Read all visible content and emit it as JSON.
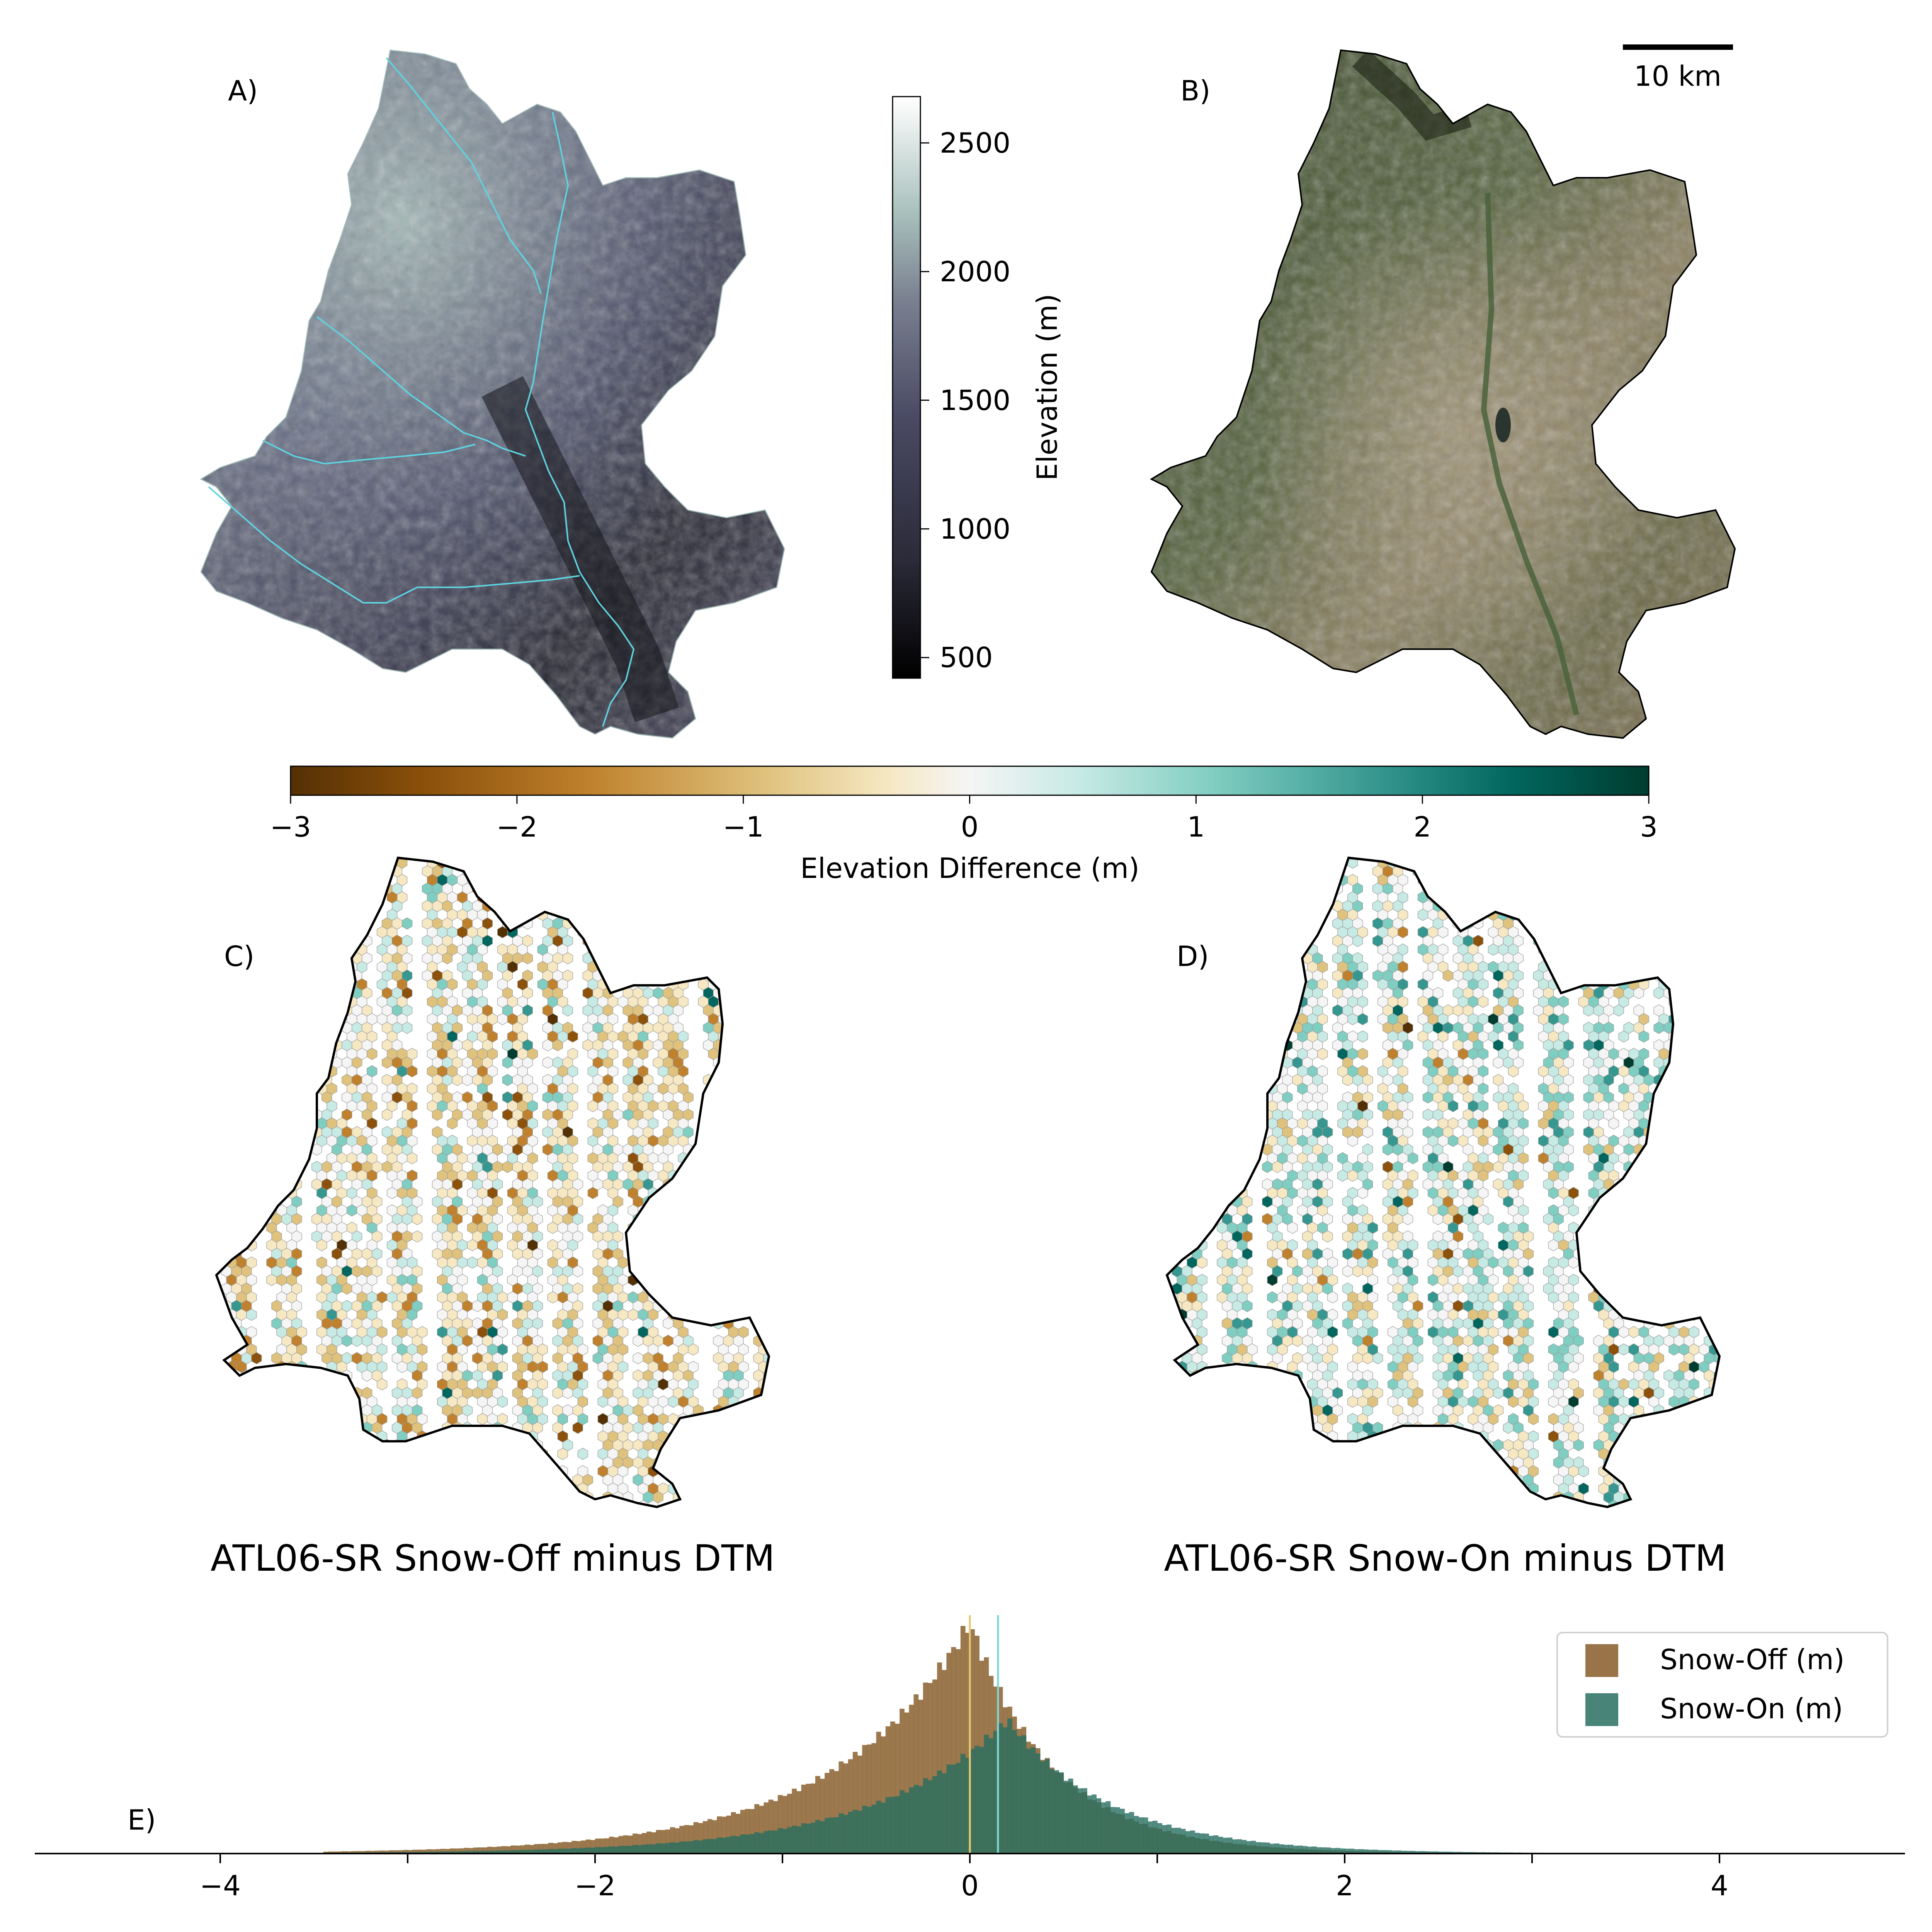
{
  "panels": {
    "a_label": "A)",
    "b_label": "B)",
    "c_label": "C)",
    "d_label": "D)",
    "e_label": "E)",
    "c_title": "ATL06-SR Snow-Off minus DTM",
    "d_title": "ATL06-SR Snow-On minus DTM"
  },
  "scalebar": {
    "label": "10 km"
  },
  "colors": {
    "elev_ramp": [
      "#000000",
      "#2a2a38",
      "#4a4a64",
      "#7a8090",
      "#a8c0bc",
      "#ffffff"
    ],
    "diff_ramp": [
      "#543005",
      "#8c510a",
      "#bf812d",
      "#dfc27d",
      "#f6e8c3",
      "#f5f5f5",
      "#c7eae5",
      "#80cdc1",
      "#35978f",
      "#01665e",
      "#003c30"
    ],
    "river": "#5fd3e0",
    "snow_off": "#8d6534",
    "snow_on": "#286e60",
    "overlap": "#2a5a45",
    "mean_off_line": "#e8c872",
    "mean_on_line": "#7ed6d4"
  },
  "chart_data": [
    {
      "type": "colorbar",
      "label": "Elevation (m)",
      "ticks": [
        500,
        1000,
        1500,
        2000,
        2500
      ],
      "tick_labels": [
        "500",
        "1000",
        "1500",
        "2000",
        "2500"
      ],
      "range": [
        420,
        2680
      ]
    },
    {
      "type": "colorbar",
      "label": "Elevation Difference (m)",
      "ticks": [
        -3,
        -2,
        -1,
        0,
        1,
        2,
        3
      ],
      "tick_labels": [
        "−3",
        "−2",
        "−1",
        "0",
        "1",
        "2",
        "3"
      ],
      "range": [
        -3,
        3
      ]
    },
    {
      "type": "histogram",
      "xlim": [
        -5,
        5
      ],
      "x_ticks": [
        -4,
        -2,
        0,
        2,
        4
      ],
      "x_tick_labels": [
        "−4",
        "−2",
        "0",
        "2",
        "4"
      ],
      "legend_position": "upper-right",
      "series": [
        {
          "name": "Snow-Off (m)",
          "center": 0.0,
          "width": 0.45,
          "skew_left": 1.6,
          "mean_line": 0.0
        },
        {
          "name": "Snow-On (m)",
          "center": 0.2,
          "width": 0.55,
          "skew_left": 1.3,
          "mean_line": 0.15
        }
      ]
    }
  ]
}
